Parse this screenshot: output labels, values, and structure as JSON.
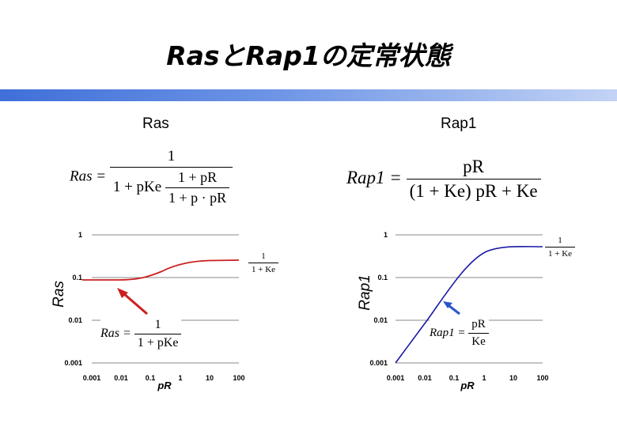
{
  "slide": {
    "title": "RasとRap1の定常状態"
  },
  "panels": {
    "ras": {
      "label": "Ras",
      "ylabel": "Ras",
      "xlabel": "pR",
      "yticks": [
        "1",
        "0.1",
        "0.01",
        "0.001"
      ],
      "xticks": [
        "0.001",
        "0.01",
        "0.1",
        "1",
        "10",
        "100"
      ],
      "main_eq": {
        "lhs": "Ras =",
        "num": "1",
        "den_a": "1 + pKe",
        "den_num": "1 + pR",
        "den_den": "1 + p · pR"
      },
      "limit_eq": {
        "num": "1",
        "den": "1 + Ke"
      },
      "approx_eq": {
        "lhs": "Ras =",
        "num": "1",
        "den": "1 + pKe"
      },
      "curve_color": "#cc1f1f",
      "arrow_color": "#cc1f1f"
    },
    "rap1": {
      "label": "Rap1",
      "ylabel": "Rap1",
      "xlabel": "pR",
      "yticks": [
        "1",
        "0.1",
        "0.01",
        "0.001"
      ],
      "xticks": [
        "0.001",
        "0.01",
        "0.1",
        "1",
        "10",
        "100"
      ],
      "main_eq": {
        "lhs": "Rap1 =",
        "num": "pR",
        "den": "(1 + Ke) pR + Ke"
      },
      "limit_eq": {
        "num": "1",
        "den": "1 + Ke"
      },
      "approx_eq": {
        "lhs": "Rap1 =",
        "num": "pR",
        "den": "Ke"
      },
      "curve_color": "#1a1aa6",
      "arrow_color": "#2a55cc"
    }
  }
}
